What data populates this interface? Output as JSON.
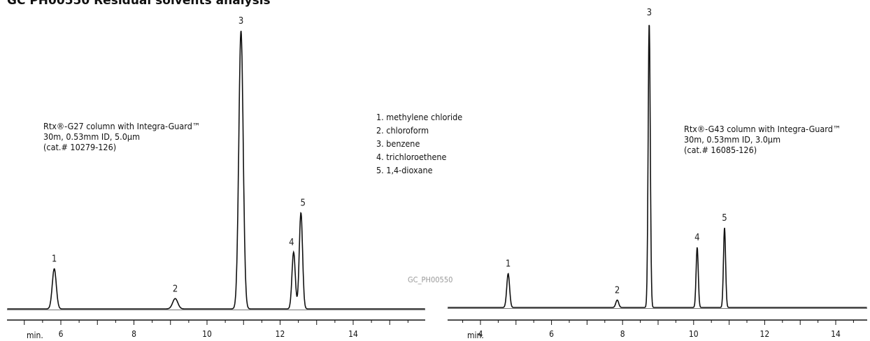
{
  "header_fragment": "GC PH00550 Residual solvents analysis",
  "watermark": "GC_PH00550",
  "legend": [
    "1. methylene chloride",
    "2. chloroform",
    "3. benzene",
    "4. trichloroethene",
    "5. 1,4-dioxane"
  ],
  "chart_data": [
    {
      "type": "line",
      "column_note": [
        "Rtx®-G27 column with Integra-Guard™",
        "30m, 0.53mm ID, 5.0μm",
        "(cat.# 10279-126)"
      ],
      "x_unit": "min.",
      "x_ticks": [
        "6",
        "8",
        "10",
        "12",
        "14"
      ],
      "x_range": [
        4.5,
        16.0
      ],
      "y_range": [
        0,
        1.0
      ],
      "baseline": 0.0,
      "trace_color": "#111111",
      "label_color": "#222222",
      "peaks": [
        {
          "label": "1",
          "rt": 5.82,
          "height": 0.144
        },
        {
          "label": "2",
          "rt": 9.13,
          "height": 0.037
        },
        {
          "label": "3",
          "rt": 10.93,
          "height": 1.0
        },
        {
          "label": "4",
          "rt": 12.37,
          "height": 0.204
        },
        {
          "label": "5",
          "rt": 12.57,
          "height": 0.346
        }
      ]
    },
    {
      "type": "line",
      "column_note": [
        "Rtx®-G43 column with Integra-Guard™",
        "30m, 0.53mm ID, 3.0μm",
        "(cat.# 16085-126)"
      ],
      "x_unit": "min.",
      "x_ticks": [
        "4",
        "6",
        "8",
        "10",
        "12",
        "14"
      ],
      "x_range": [
        3.0,
        15.3
      ],
      "y_range": [
        0,
        1.0
      ],
      "baseline": 0.0,
      "trace_color": "#111111",
      "label_color": "#999999",
      "peaks": [
        {
          "label": "1",
          "rt": 4.78,
          "height": 0.119
        },
        {
          "label": "2",
          "rt": 7.85,
          "height": 0.026
        },
        {
          "label": "3",
          "rt": 8.75,
          "height": 1.0
        },
        {
          "label": "4",
          "rt": 10.1,
          "height": 0.211
        },
        {
          "label": "5",
          "rt": 10.87,
          "height": 0.28
        }
      ]
    }
  ]
}
